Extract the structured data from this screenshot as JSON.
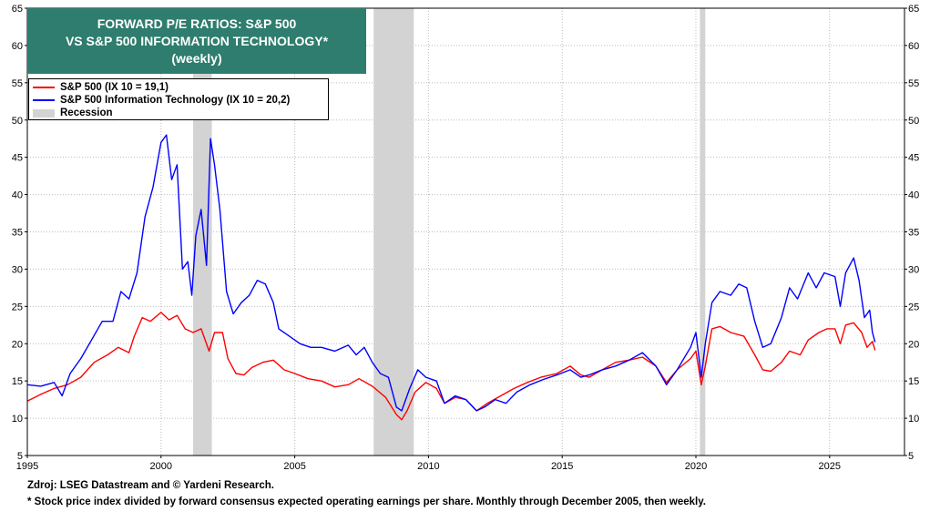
{
  "title": {
    "line1": "FORWARD P/E RATIOS: S&P 500",
    "line2": "VS S&P 500 INFORMATION TECHNOLOGY*",
    "line3": "(weekly)",
    "background_color": "#2e7d6e"
  },
  "legend": {
    "items": [
      {
        "label": "S&P 500 (IX 10 = 19,1)",
        "color": "#ff0000",
        "kind": "line"
      },
      {
        "label": "S&P 500 Information Technology (IX 10 = 20,2)",
        "color": "#0000ff",
        "kind": "line"
      },
      {
        "label": "Recession",
        "color": "#d3d3d3",
        "kind": "band"
      }
    ]
  },
  "footer": {
    "source": "Zdroj: LSEG Datastream and © Yardeni Research.",
    "note": "* Stock price index divided by forward consensus expected operating earnings per share. Monthly through December 2005, then weekly."
  },
  "chart_data": {
    "type": "line",
    "x_range": [
      1995,
      2027.8
    ],
    "ylim": [
      5,
      65
    ],
    "x_ticks": [
      1995,
      2000,
      2005,
      2010,
      2015,
      2020,
      2025
    ],
    "y_ticks": [
      5,
      10,
      15,
      20,
      25,
      30,
      35,
      40,
      45,
      50,
      55,
      60,
      65
    ],
    "y_axis_both_sides": true,
    "grid": "dotted",
    "legend_placement": "top-left",
    "recessions": [
      [
        2001.2,
        2001.9
      ],
      [
        2007.95,
        2009.45
      ],
      [
        2020.15,
        2020.35
      ]
    ],
    "series": [
      {
        "name": "S&P 500 (IX 10 = 19,1)",
        "color": "#ff0000",
        "points": [
          [
            1995.0,
            12.3
          ],
          [
            1995.5,
            13.2
          ],
          [
            1996.0,
            14.0
          ],
          [
            1996.5,
            14.5
          ],
          [
            1997.0,
            15.5
          ],
          [
            1997.5,
            17.5
          ],
          [
            1998.0,
            18.5
          ],
          [
            1998.4,
            19.5
          ],
          [
            1998.8,
            18.8
          ],
          [
            1999.0,
            21.0
          ],
          [
            1999.3,
            23.5
          ],
          [
            1999.6,
            23.0
          ],
          [
            2000.0,
            24.2
          ],
          [
            2000.3,
            23.2
          ],
          [
            2000.6,
            23.8
          ],
          [
            2000.9,
            22.0
          ],
          [
            2001.2,
            21.5
          ],
          [
            2001.5,
            22.0
          ],
          [
            2001.8,
            19.0
          ],
          [
            2002.0,
            21.5
          ],
          [
            2002.3,
            21.5
          ],
          [
            2002.5,
            18.0
          ],
          [
            2002.8,
            16.0
          ],
          [
            2003.1,
            15.8
          ],
          [
            2003.4,
            16.8
          ],
          [
            2003.8,
            17.5
          ],
          [
            2004.2,
            17.8
          ],
          [
            2004.6,
            16.5
          ],
          [
            2005.0,
            16.0
          ],
          [
            2005.5,
            15.3
          ],
          [
            2006.0,
            15.0
          ],
          [
            2006.5,
            14.2
          ],
          [
            2007.0,
            14.5
          ],
          [
            2007.4,
            15.3
          ],
          [
            2007.9,
            14.3
          ],
          [
            2008.4,
            12.8
          ],
          [
            2008.8,
            10.5
          ],
          [
            2009.0,
            9.8
          ],
          [
            2009.2,
            11.0
          ],
          [
            2009.5,
            13.5
          ],
          [
            2009.9,
            14.8
          ],
          [
            2010.3,
            14.0
          ],
          [
            2010.6,
            12.0
          ],
          [
            2011.0,
            12.8
          ],
          [
            2011.4,
            12.5
          ],
          [
            2011.8,
            11.0
          ],
          [
            2012.2,
            12.0
          ],
          [
            2012.7,
            13.0
          ],
          [
            2013.2,
            14.0
          ],
          [
            2013.7,
            14.8
          ],
          [
            2014.2,
            15.5
          ],
          [
            2014.8,
            16.0
          ],
          [
            2015.3,
            17.0
          ],
          [
            2015.7,
            15.8
          ],
          [
            2016.0,
            15.5
          ],
          [
            2016.5,
            16.5
          ],
          [
            2017.0,
            17.5
          ],
          [
            2017.5,
            17.8
          ],
          [
            2018.0,
            18.2
          ],
          [
            2018.5,
            17.0
          ],
          [
            2018.9,
            14.8
          ],
          [
            2019.3,
            16.5
          ],
          [
            2019.8,
            18.0
          ],
          [
            2020.0,
            19.0
          ],
          [
            2020.2,
            14.5
          ],
          [
            2020.35,
            17.0
          ],
          [
            2020.6,
            22.0
          ],
          [
            2020.9,
            22.3
          ],
          [
            2021.3,
            21.5
          ],
          [
            2021.8,
            21.0
          ],
          [
            2022.2,
            18.5
          ],
          [
            2022.5,
            16.5
          ],
          [
            2022.8,
            16.3
          ],
          [
            2023.2,
            17.5
          ],
          [
            2023.5,
            19.0
          ],
          [
            2023.9,
            18.5
          ],
          [
            2024.2,
            20.5
          ],
          [
            2024.6,
            21.5
          ],
          [
            2024.9,
            22.0
          ],
          [
            2025.2,
            22.0
          ],
          [
            2025.4,
            20.0
          ],
          [
            2025.6,
            22.5
          ],
          [
            2025.9,
            22.8
          ],
          [
            2026.2,
            21.5
          ],
          [
            2026.4,
            19.5
          ],
          [
            2026.6,
            20.3
          ],
          [
            2026.7,
            19.1
          ]
        ]
      },
      {
        "name": "S&P 500 Information Technology (IX 10 = 20,2)",
        "color": "#0000ff",
        "points": [
          [
            1995.0,
            14.5
          ],
          [
            1995.5,
            14.3
          ],
          [
            1996.0,
            14.8
          ],
          [
            1996.3,
            13.0
          ],
          [
            1996.6,
            16.0
          ],
          [
            1997.0,
            18.0
          ],
          [
            1997.4,
            20.5
          ],
          [
            1997.8,
            23.0
          ],
          [
            1998.2,
            23.0
          ],
          [
            1998.5,
            27.0
          ],
          [
            1998.8,
            26.0
          ],
          [
            1999.1,
            29.5
          ],
          [
            1999.4,
            37.0
          ],
          [
            1999.7,
            41.0
          ],
          [
            2000.0,
            47.0
          ],
          [
            2000.2,
            48.0
          ],
          [
            2000.4,
            42.0
          ],
          [
            2000.6,
            44.0
          ],
          [
            2000.8,
            30.0
          ],
          [
            2001.0,
            31.0
          ],
          [
            2001.15,
            26.5
          ],
          [
            2001.3,
            34.5
          ],
          [
            2001.5,
            38.0
          ],
          [
            2001.7,
            30.5
          ],
          [
            2001.85,
            47.5
          ],
          [
            2002.0,
            44.0
          ],
          [
            2002.2,
            38.0
          ],
          [
            2002.45,
            27.0
          ],
          [
            2002.7,
            24.0
          ],
          [
            2003.0,
            25.5
          ],
          [
            2003.3,
            26.5
          ],
          [
            2003.6,
            28.5
          ],
          [
            2003.9,
            28.0
          ],
          [
            2004.2,
            25.5
          ],
          [
            2004.4,
            22.0
          ],
          [
            2004.8,
            21.0
          ],
          [
            2005.2,
            20.0
          ],
          [
            2005.6,
            19.5
          ],
          [
            2006.0,
            19.5
          ],
          [
            2006.5,
            19.0
          ],
          [
            2007.0,
            19.8
          ],
          [
            2007.3,
            18.5
          ],
          [
            2007.6,
            19.5
          ],
          [
            2007.9,
            17.5
          ],
          [
            2008.2,
            16.0
          ],
          [
            2008.5,
            15.5
          ],
          [
            2008.8,
            11.5
          ],
          [
            2009.0,
            11.0
          ],
          [
            2009.3,
            14.0
          ],
          [
            2009.6,
            16.5
          ],
          [
            2009.9,
            15.5
          ],
          [
            2010.3,
            15.0
          ],
          [
            2010.6,
            12.0
          ],
          [
            2011.0,
            13.0
          ],
          [
            2011.4,
            12.5
          ],
          [
            2011.8,
            11.0
          ],
          [
            2012.1,
            11.5
          ],
          [
            2012.5,
            12.5
          ],
          [
            2012.9,
            12.0
          ],
          [
            2013.3,
            13.5
          ],
          [
            2013.8,
            14.5
          ],
          [
            2014.3,
            15.2
          ],
          [
            2014.8,
            15.8
          ],
          [
            2015.3,
            16.5
          ],
          [
            2015.7,
            15.5
          ],
          [
            2016.0,
            15.8
          ],
          [
            2016.5,
            16.5
          ],
          [
            2017.0,
            17.0
          ],
          [
            2017.5,
            17.8
          ],
          [
            2018.0,
            18.8
          ],
          [
            2018.5,
            17.0
          ],
          [
            2018.9,
            14.5
          ],
          [
            2019.3,
            16.5
          ],
          [
            2019.8,
            19.5
          ],
          [
            2020.0,
            21.5
          ],
          [
            2020.2,
            15.5
          ],
          [
            2020.35,
            20.0
          ],
          [
            2020.6,
            25.5
          ],
          [
            2020.9,
            27.0
          ],
          [
            2021.3,
            26.5
          ],
          [
            2021.6,
            28.0
          ],
          [
            2021.9,
            27.5
          ],
          [
            2022.2,
            23.0
          ],
          [
            2022.5,
            19.5
          ],
          [
            2022.8,
            20.0
          ],
          [
            2023.2,
            23.5
          ],
          [
            2023.5,
            27.5
          ],
          [
            2023.8,
            26.0
          ],
          [
            2024.2,
            29.5
          ],
          [
            2024.5,
            27.5
          ],
          [
            2024.8,
            29.5
          ],
          [
            2025.2,
            29.0
          ],
          [
            2025.4,
            25.0
          ],
          [
            2025.6,
            29.5
          ],
          [
            2025.9,
            31.5
          ],
          [
            2026.1,
            28.5
          ],
          [
            2026.3,
            23.5
          ],
          [
            2026.5,
            24.5
          ],
          [
            2026.6,
            21.5
          ],
          [
            2026.7,
            20.2
          ]
        ]
      }
    ]
  }
}
